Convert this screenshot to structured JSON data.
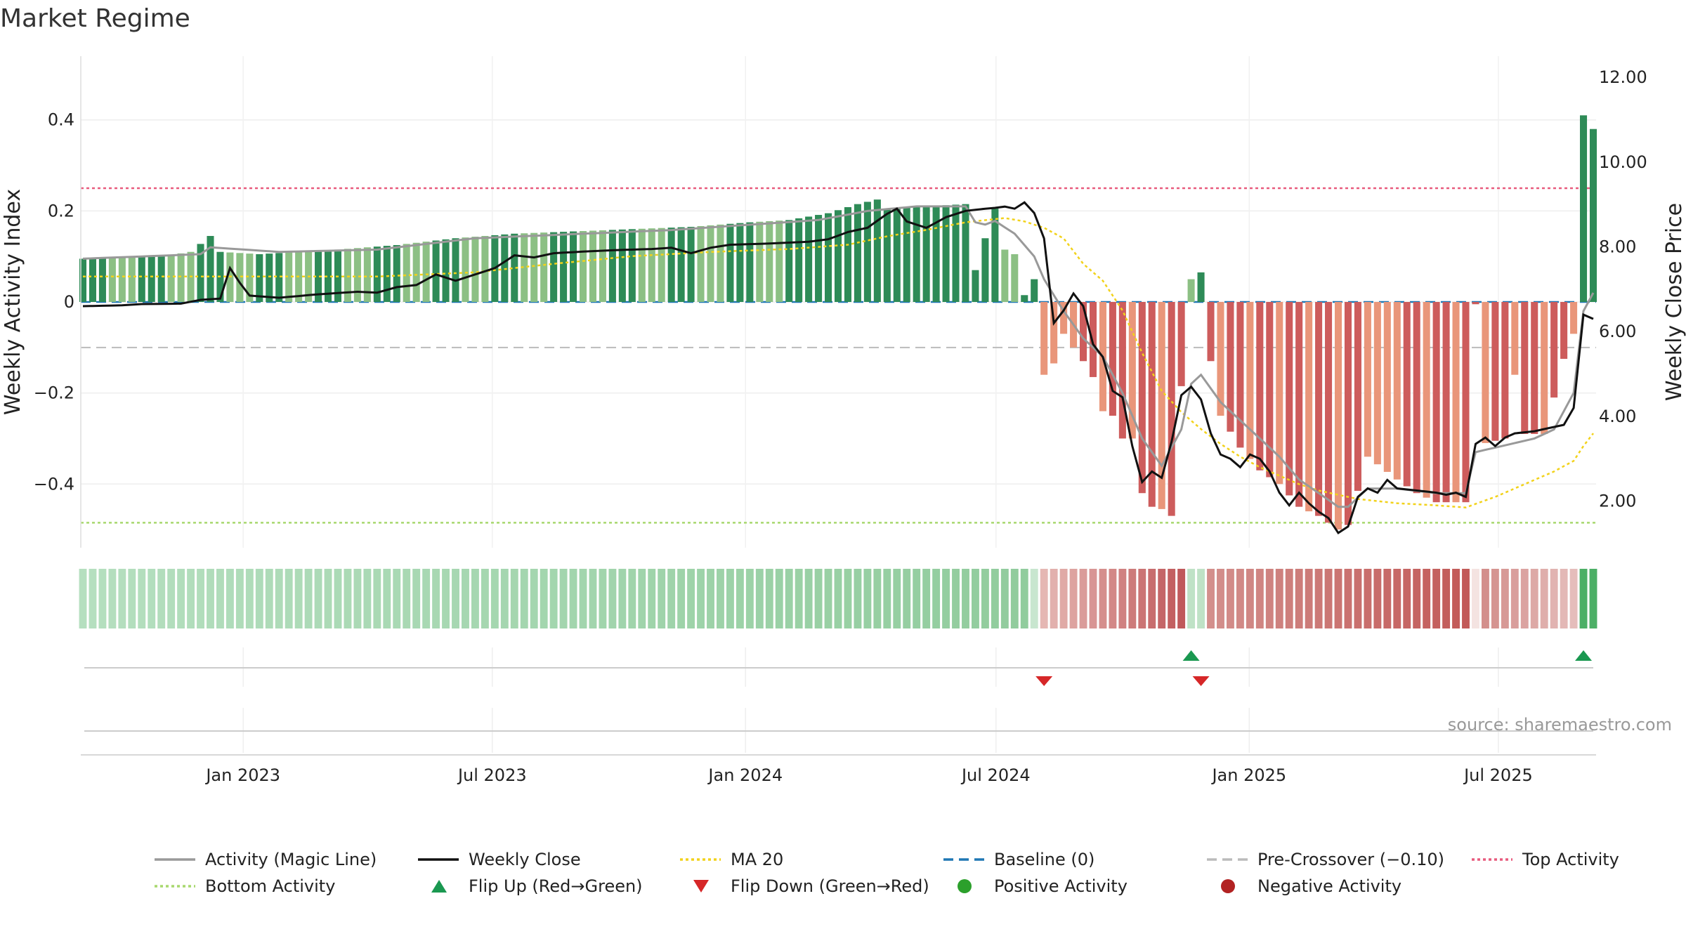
{
  "chart_data": {
    "type": "bar",
    "title": "Market Regime",
    "ylabel": "Weekly Activity Index",
    "y2label": "Weekly Close Price",
    "source": "source: sharemaestro.com",
    "ylim": [
      -0.54,
      0.54
    ],
    "y2lim": [
      0.9,
      12.5
    ],
    "y_ticks": [
      {
        "v": 0.4,
        "label": "0.4"
      },
      {
        "v": 0.2,
        "label": "0.2"
      },
      {
        "v": 0,
        "label": "0"
      },
      {
        "v": -0.2,
        "label": "−0.2"
      },
      {
        "v": -0.4,
        "label": "−0.4"
      }
    ],
    "y2_ticks": [
      {
        "v": 12,
        "label": "12.00"
      },
      {
        "v": 10,
        "label": "10.00"
      },
      {
        "v": 8,
        "label": "8.00"
      },
      {
        "v": 6,
        "label": "6.00"
      },
      {
        "v": 4,
        "label": "4.00"
      },
      {
        "v": 2,
        "label": "2.00"
      }
    ],
    "x_start": "2022-09-05",
    "x_end": "2025-09-10",
    "x_ticks": [
      {
        "date": "2023-01-01",
        "label": "Jan 2023"
      },
      {
        "date": "2023-07-01",
        "label": "Jul 2023"
      },
      {
        "date": "2024-01-01",
        "label": "Jan 2024"
      },
      {
        "date": "2024-07-01",
        "label": "Jul 2024"
      },
      {
        "date": "2025-01-01",
        "label": "Jan 2025"
      },
      {
        "date": "2025-07-01",
        "label": "Jul 2025"
      }
    ],
    "reference_lines": {
      "baseline": 0,
      "pre_crossover": -0.1,
      "top_activity": 0.25,
      "bottom_activity": -0.485
    },
    "colors": {
      "pos_dark": "#2e8b57",
      "pos_light": "#8cc084",
      "neg_dark": "#cd5c5c",
      "neg_light": "#e9967a",
      "magic": "#999999",
      "close": "#111111",
      "ma": "#f2d21b",
      "baseline": "#1f77b4",
      "pre": "#bbbbbb",
      "top": "#e85c7e",
      "bottom": "#a8d86e",
      "flip_up": "#1a9850",
      "flip_down": "#d62728",
      "pos_dot": "#2ca02c",
      "neg_dot": "#b22222"
    },
    "anchors": {
      "activity": [
        [
          0,
          0.095
        ],
        [
          4,
          0.098
        ],
        [
          8,
          0.1
        ],
        [
          11,
          0.11
        ],
        [
          13,
          0.145
        ],
        [
          14,
          0.11
        ],
        [
          18,
          0.105
        ],
        [
          22,
          0.11
        ],
        [
          26,
          0.115
        ],
        [
          32,
          0.125
        ],
        [
          38,
          0.14
        ],
        [
          44,
          0.15
        ],
        [
          50,
          0.155
        ],
        [
          56,
          0.16
        ],
        [
          62,
          0.165
        ],
        [
          68,
          0.175
        ],
        [
          72,
          0.18
        ],
        [
          76,
          0.195
        ],
        [
          79,
          0.215
        ],
        [
          81,
          0.225
        ],
        [
          82,
          0.205
        ],
        [
          90,
          0.215
        ],
        [
          91,
          0.07
        ],
        [
          92,
          0.14
        ],
        [
          93,
          0.205
        ],
        [
          94,
          0.115
        ],
        [
          95,
          0.105
        ],
        [
          96,
          0.015
        ],
        [
          97,
          0.05
        ],
        [
          98,
          -0.16
        ],
        [
          99,
          -0.135
        ],
        [
          100,
          -0.07
        ],
        [
          101,
          -0.1
        ],
        [
          102,
          -0.13
        ],
        [
          103,
          -0.165
        ],
        [
          104,
          -0.24
        ],
        [
          105,
          -0.25
        ],
        [
          106,
          -0.3
        ],
        [
          107,
          -0.3
        ],
        [
          108,
          -0.42
        ],
        [
          109,
          -0.45
        ],
        [
          110,
          -0.455
        ],
        [
          111,
          -0.47
        ],
        [
          112,
          -0.185
        ],
        [
          113,
          0.05
        ],
        [
          114,
          0.065
        ],
        [
          115,
          -0.13
        ],
        [
          116,
          -0.25
        ],
        [
          118,
          -0.32
        ],
        [
          120,
          -0.37
        ],
        [
          122,
          -0.4
        ],
        [
          124,
          -0.45
        ],
        [
          126,
          -0.47
        ],
        [
          128,
          -0.5
        ],
        [
          129,
          -0.49
        ],
        [
          131,
          -0.34
        ],
        [
          134,
          -0.39
        ],
        [
          136,
          -0.42
        ],
        [
          138,
          -0.44
        ],
        [
          140,
          -0.44
        ],
        [
          141,
          -0.44
        ],
        [
          142,
          -0.005
        ],
        [
          143,
          -0.31
        ],
        [
          145,
          -0.3
        ],
        [
          146,
          -0.16
        ],
        [
          147,
          -0.29
        ],
        [
          149,
          -0.29
        ],
        [
          150,
          -0.21
        ],
        [
          151,
          -0.125
        ],
        [
          152,
          -0.07
        ],
        [
          153,
          0.41
        ],
        [
          154,
          0.38
        ]
      ],
      "magic": [
        [
          0,
          0.095
        ],
        [
          12,
          0.105
        ],
        [
          13,
          0.12
        ],
        [
          20,
          0.11
        ],
        [
          30,
          0.115
        ],
        [
          40,
          0.14
        ],
        [
          60,
          0.158
        ],
        [
          75,
          0.18
        ],
        [
          80,
          0.2
        ],
        [
          85,
          0.21
        ],
        [
          90,
          0.21
        ],
        [
          91,
          0.175
        ],
        [
          92,
          0.17
        ],
        [
          93,
          0.178
        ],
        [
          95,
          0.15
        ],
        [
          97,
          0.1
        ],
        [
          98,
          0.05
        ],
        [
          100,
          -0.02
        ],
        [
          102,
          -0.08
        ],
        [
          104,
          -0.12
        ],
        [
          106,
          -0.2
        ],
        [
          108,
          -0.3
        ],
        [
          110,
          -0.36
        ],
        [
          112,
          -0.28
        ],
        [
          113,
          -0.18
        ],
        [
          114,
          -0.16
        ],
        [
          116,
          -0.22
        ],
        [
          118,
          -0.26
        ],
        [
          120,
          -0.3
        ],
        [
          122,
          -0.34
        ],
        [
          124,
          -0.39
        ],
        [
          126,
          -0.42
        ],
        [
          128,
          -0.45
        ],
        [
          129,
          -0.45
        ],
        [
          131,
          -0.41
        ],
        [
          134,
          -0.41
        ],
        [
          138,
          -0.42
        ],
        [
          140,
          -0.42
        ],
        [
          141,
          -0.42
        ],
        [
          142,
          -0.33
        ],
        [
          144,
          -0.32
        ],
        [
          146,
          -0.31
        ],
        [
          148,
          -0.3
        ],
        [
          150,
          -0.28
        ],
        [
          152,
          -0.2
        ],
        [
          153,
          -0.02
        ],
        [
          154,
          0.02
        ]
      ],
      "close": [
        [
          0,
          6.6
        ],
        [
          4,
          6.62
        ],
        [
          6,
          6.65
        ],
        [
          10,
          6.66
        ],
        [
          12,
          6.75
        ],
        [
          14,
          6.78
        ],
        [
          15,
          7.5
        ],
        [
          16,
          7.15
        ],
        [
          17,
          6.85
        ],
        [
          20,
          6.8
        ],
        [
          24,
          6.88
        ],
        [
          28,
          6.94
        ],
        [
          30,
          6.92
        ],
        [
          32,
          7.05
        ],
        [
          34,
          7.1
        ],
        [
          36,
          7.35
        ],
        [
          38,
          7.2
        ],
        [
          40,
          7.35
        ],
        [
          42,
          7.5
        ],
        [
          44,
          7.8
        ],
        [
          46,
          7.75
        ],
        [
          48,
          7.85
        ],
        [
          52,
          7.9
        ],
        [
          54,
          7.92
        ],
        [
          58,
          7.95
        ],
        [
          60,
          7.98
        ],
        [
          62,
          7.85
        ],
        [
          64,
          7.98
        ],
        [
          66,
          8.05
        ],
        [
          70,
          8.08
        ],
        [
          74,
          8.12
        ],
        [
          76,
          8.18
        ],
        [
          78,
          8.35
        ],
        [
          80,
          8.45
        ],
        [
          82,
          8.78
        ],
        [
          83,
          8.9
        ],
        [
          84,
          8.6
        ],
        [
          86,
          8.45
        ],
        [
          88,
          8.7
        ],
        [
          90,
          8.85
        ],
        [
          92,
          8.9
        ],
        [
          93,
          8.92
        ],
        [
          94,
          8.95
        ],
        [
          95,
          8.9
        ],
        [
          96,
          9.05
        ],
        [
          97,
          8.8
        ],
        [
          98,
          8.2
        ],
        [
          99,
          6.2
        ],
        [
          100,
          6.5
        ],
        [
          101,
          6.9
        ],
        [
          102,
          6.6
        ],
        [
          103,
          5.7
        ],
        [
          104,
          5.4
        ],
        [
          105,
          4.6
        ],
        [
          106,
          4.45
        ],
        [
          107,
          3.3
        ],
        [
          108,
          2.45
        ],
        [
          109,
          2.7
        ],
        [
          110,
          2.55
        ],
        [
          111,
          3.4
        ],
        [
          112,
          4.5
        ],
        [
          113,
          4.7
        ],
        [
          114,
          4.4
        ],
        [
          115,
          3.6
        ],
        [
          116,
          3.1
        ],
        [
          117,
          3.0
        ],
        [
          118,
          2.8
        ],
        [
          119,
          3.1
        ],
        [
          120,
          3.0
        ],
        [
          121,
          2.7
        ],
        [
          122,
          2.2
        ],
        [
          123,
          1.9
        ],
        [
          124,
          2.2
        ],
        [
          125,
          1.95
        ],
        [
          126,
          1.75
        ],
        [
          127,
          1.6
        ],
        [
          128,
          1.25
        ],
        [
          129,
          1.4
        ],
        [
          130,
          2.1
        ],
        [
          131,
          2.3
        ],
        [
          132,
          2.2
        ],
        [
          133,
          2.5
        ],
        [
          134,
          2.3
        ],
        [
          136,
          2.25
        ],
        [
          138,
          2.2
        ],
        [
          139,
          2.15
        ],
        [
          140,
          2.2
        ],
        [
          141,
          2.1
        ],
        [
          142,
          3.35
        ],
        [
          143,
          3.5
        ],
        [
          144,
          3.3
        ],
        [
          145,
          3.5
        ],
        [
          146,
          3.6
        ],
        [
          148,
          3.65
        ],
        [
          150,
          3.75
        ],
        [
          151,
          3.8
        ],
        [
          152,
          4.2
        ],
        [
          153,
          6.4
        ],
        [
          154,
          6.3
        ]
      ],
      "ma": [
        [
          0,
          7.3
        ],
        [
          10,
          7.3
        ],
        [
          20,
          7.3
        ],
        [
          30,
          7.3
        ],
        [
          40,
          7.4
        ],
        [
          48,
          7.6
        ],
        [
          56,
          7.78
        ],
        [
          64,
          7.88
        ],
        [
          72,
          7.95
        ],
        [
          78,
          8.05
        ],
        [
          82,
          8.25
        ],
        [
          86,
          8.4
        ],
        [
          90,
          8.58
        ],
        [
          94,
          8.68
        ],
        [
          96,
          8.6
        ],
        [
          98,
          8.45
        ],
        [
          100,
          8.2
        ],
        [
          102,
          7.6
        ],
        [
          104,
          7.2
        ],
        [
          106,
          6.5
        ],
        [
          108,
          5.5
        ],
        [
          110,
          4.6
        ],
        [
          112,
          4.1
        ],
        [
          114,
          3.7
        ],
        [
          116,
          3.35
        ],
        [
          118,
          3.05
        ],
        [
          120,
          2.8
        ],
        [
          122,
          2.6
        ],
        [
          124,
          2.4
        ],
        [
          126,
          2.25
        ],
        [
          128,
          2.15
        ],
        [
          130,
          2.05
        ],
        [
          134,
          1.95
        ],
        [
          138,
          1.9
        ],
        [
          141,
          1.85
        ],
        [
          144,
          2.1
        ],
        [
          146,
          2.3
        ],
        [
          148,
          2.5
        ],
        [
          150,
          2.7
        ],
        [
          152,
          2.95
        ],
        [
          153,
          3.3
        ],
        [
          154,
          3.6
        ]
      ]
    },
    "regime_strip": [
      {
        "start": 0,
        "end": 96,
        "color_from": "#b5dfbf",
        "color_to": "#91cc9d"
      },
      {
        "start": 97,
        "end": 97,
        "color_from": "#c8e6cf",
        "color_to": "#c8e6cf"
      },
      {
        "start": 98,
        "end": 112,
        "color_from": "#e5b7b3",
        "color_to": "#c0595b"
      },
      {
        "start": 113,
        "end": 114,
        "color_from": "#bfe2c6",
        "color_to": "#bfe2c6"
      },
      {
        "start": 115,
        "end": 141,
        "color_from": "#d38f8c",
        "color_to": "#c25a58"
      },
      {
        "start": 142,
        "end": 142,
        "color_from": "#f4e3e1",
        "color_to": "#f4e3e1"
      },
      {
        "start": 143,
        "end": 152,
        "color_from": "#d38f8c",
        "color_to": "#e5bdbb"
      },
      {
        "start": 153,
        "end": 154,
        "color_from": "#4caf66",
        "color_to": "#4caf66"
      }
    ],
    "flip_up": [
      113,
      153
    ],
    "flip_down": [
      98,
      114
    ],
    "legend": [
      {
        "label": "Activity (Magic Line)",
        "kind": "line",
        "color": "#999999",
        "dash": ""
      },
      {
        "label": "Weekly Close",
        "kind": "line",
        "color": "#111111",
        "dash": ""
      },
      {
        "label": "MA 20",
        "kind": "line",
        "color": "#f2d21b",
        "dash": "4,4"
      },
      {
        "label": "Baseline (0)",
        "kind": "line",
        "color": "#1f77b4",
        "dash": "14,8"
      },
      {
        "label": "Pre-Crossover (−0.10)",
        "kind": "line",
        "color": "#bbbbbb",
        "dash": "14,8"
      },
      {
        "label": "Top Activity",
        "kind": "line",
        "color": "#e85c7e",
        "dash": "4,4"
      },
      {
        "label": "Bottom Activity",
        "kind": "line",
        "color": "#a8d86e",
        "dash": "4,4"
      },
      {
        "label": "Flip Up (Red→Green)",
        "kind": "tri-up",
        "color": "#1a9850",
        "dash": ""
      },
      {
        "label": "Flip Down (Green→Red)",
        "kind": "tri-down",
        "color": "#d62728",
        "dash": ""
      },
      {
        "label": "Positive Activity",
        "kind": "dot",
        "color": "#2ca02c",
        "dash": ""
      },
      {
        "label": "Negative Activity",
        "kind": "dot",
        "color": "#b22222",
        "dash": ""
      }
    ]
  }
}
